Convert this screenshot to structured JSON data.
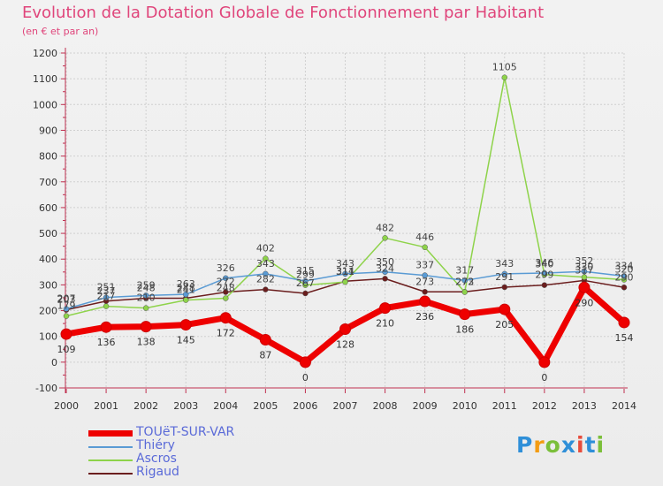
{
  "title": "Evolution de la Dotation Globale de Fonctionnement par Habitant",
  "subtitle": "(en € et par an)",
  "logo": {
    "text": "Proxiti",
    "colors": [
      "#2f8fd8",
      "#f39c12",
      "#7bbf3a",
      "#2f8fd8",
      "#e74c3c",
      "#2f8fd8",
      "#7bbf3a"
    ]
  },
  "chart_data": {
    "type": "line",
    "title": "Evolution de la Dotation Globale de Fonctionnement par Habitant",
    "subtitle": "(en € et par an)",
    "xlabel": "",
    "ylabel": "",
    "ylim": [
      -100,
      1200
    ],
    "yticks": [
      -100,
      0,
      100,
      200,
      300,
      400,
      500,
      600,
      700,
      800,
      900,
      1000,
      1100,
      1200
    ],
    "categories": [
      "2000",
      "2001",
      "2002",
      "2003",
      "2004",
      "2005",
      "2006",
      "2007",
      "2008",
      "2009",
      "2010",
      "2011",
      "2012",
      "2013",
      "2014"
    ],
    "legend_position": "bottom-left",
    "series": [
      {
        "name": "TOUëT-SUR-VAR",
        "color": "#ee0000",
        "values": [
          109,
          136,
          138,
          145,
          172,
          87,
          0,
          128,
          210,
          236,
          186,
          205,
          0,
          290,
          154
        ]
      },
      {
        "name": "Thiéry",
        "color": "#5a9bd4",
        "values": [
          207,
          251,
          259,
          263,
          326,
          343,
          315,
          343,
          350,
          337,
          317,
          343,
          346,
          352,
          334
        ]
      },
      {
        "name": "Ascros",
        "color": "#8ed34a",
        "values": [
          179,
          217,
          210,
          241,
          248,
          402,
          299,
          311,
          482,
          446,
          272,
          1105,
          340,
          330,
          320
        ]
      },
      {
        "name": "Rigaud",
        "color": "#6b1e1e",
        "values": [
          203,
          237,
          248,
          248,
          272,
          282,
          267,
          314,
          324,
          273,
          273,
          291,
          299,
          317,
          290
        ]
      }
    ]
  }
}
